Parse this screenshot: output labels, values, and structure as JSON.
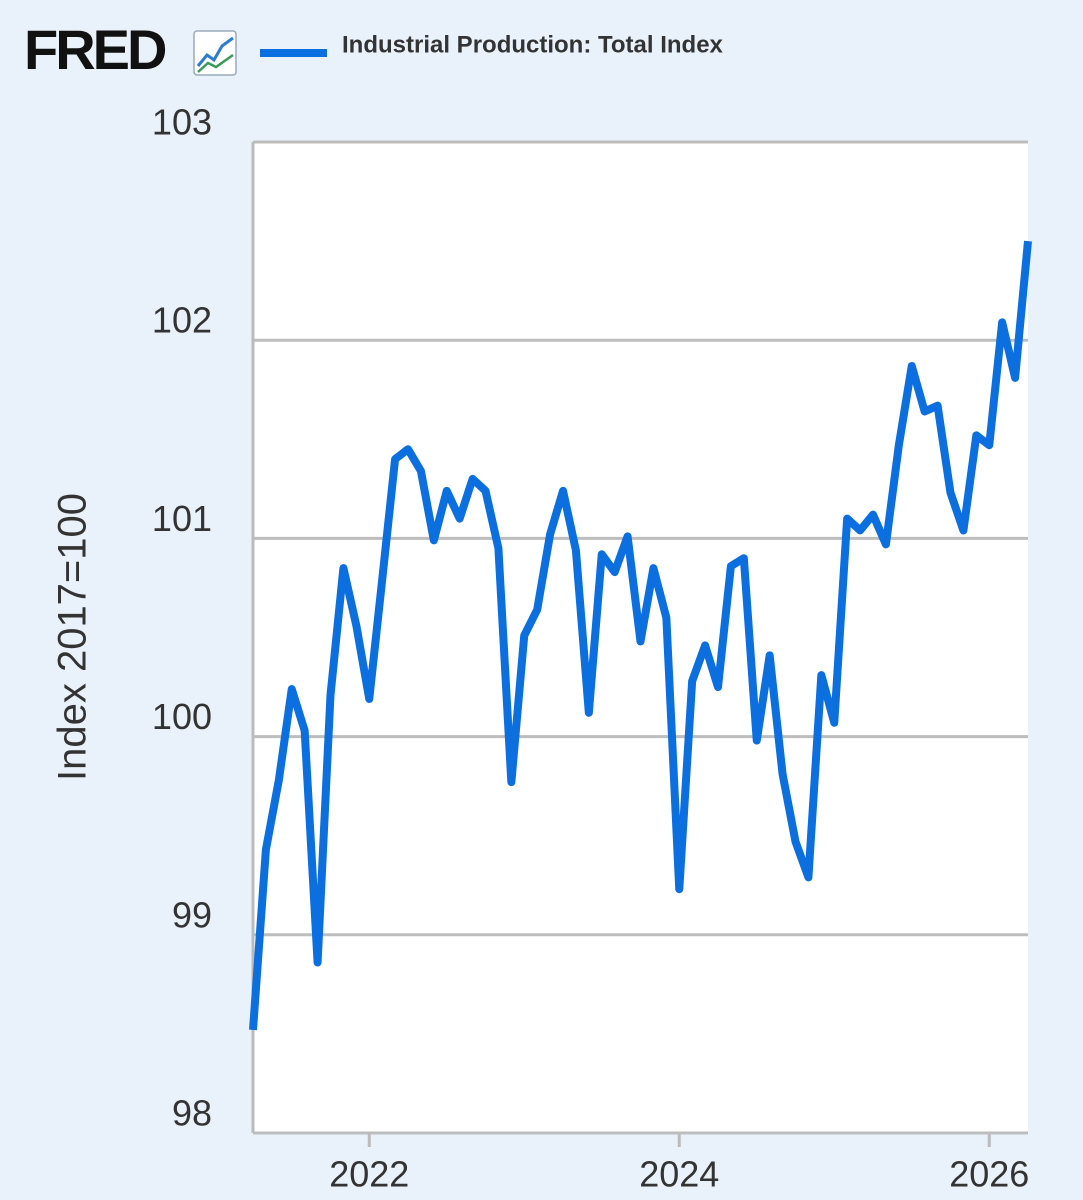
{
  "chart_data": {
    "type": "line",
    "logo": "FRED",
    "y_label": "Index 2017=100",
    "x": [
      2021.25,
      2021.3333,
      2021.4167,
      2021.5,
      2021.5833,
      2021.6667,
      2021.75,
      2021.8333,
      2021.9167,
      2022.0,
      2022.0833,
      2022.1667,
      2022.25,
      2022.3333,
      2022.4167,
      2022.5,
      2022.5833,
      2022.6667,
      2022.75,
      2022.8333,
      2022.9167,
      2023.0,
      2023.0833,
      2023.1667,
      2023.25,
      2023.3333,
      2023.4167,
      2023.5,
      2023.5833,
      2023.6667,
      2023.75,
      2023.8333,
      2023.9167,
      2024.0,
      2024.0833,
      2024.1667,
      2024.25,
      2024.3333,
      2024.4167,
      2024.5,
      2024.5833,
      2024.6667,
      2024.75,
      2024.8333,
      2024.9167,
      2025.0,
      2025.0833,
      2025.1667,
      2025.25,
      2025.3333,
      2025.4167,
      2025.5,
      2025.5833,
      2025.6667,
      2025.75,
      2025.8333,
      2025.9167,
      2026.0,
      2026.0833,
      2026.1667,
      2026.25
    ],
    "series": [
      {
        "name": "Industrial Production: Total Index",
        "color": "#0b6fe0",
        "values": [
          98.52,
          99.43,
          99.78,
          100.24,
          100.03,
          98.86,
          100.21,
          100.85,
          100.56,
          100.19,
          100.79,
          101.4,
          101.45,
          101.34,
          100.99,
          101.24,
          101.1,
          101.3,
          101.24,
          100.95,
          99.77,
          100.51,
          100.64,
          101.02,
          101.24,
          100.94,
          100.12,
          100.92,
          100.83,
          101.01,
          100.48,
          100.85,
          100.6,
          99.23,
          100.28,
          100.46,
          100.25,
          100.86,
          100.9,
          99.98,
          100.41,
          99.81,
          99.47,
          99.29,
          100.31,
          100.07,
          101.1,
          101.04,
          101.12,
          100.97,
          101.47,
          101.87,
          101.64,
          101.67,
          101.23,
          101.04,
          101.52,
          101.47,
          102.09,
          101.81,
          102.5
        ]
      }
    ],
    "xlim": [
      2021.25,
      2026.25
    ],
    "xticks": [
      2022,
      2024,
      2026
    ],
    "ylim": [
      98,
      103
    ],
    "yticks": [
      98,
      99,
      100,
      101,
      102,
      103
    ],
    "grid": true
  }
}
